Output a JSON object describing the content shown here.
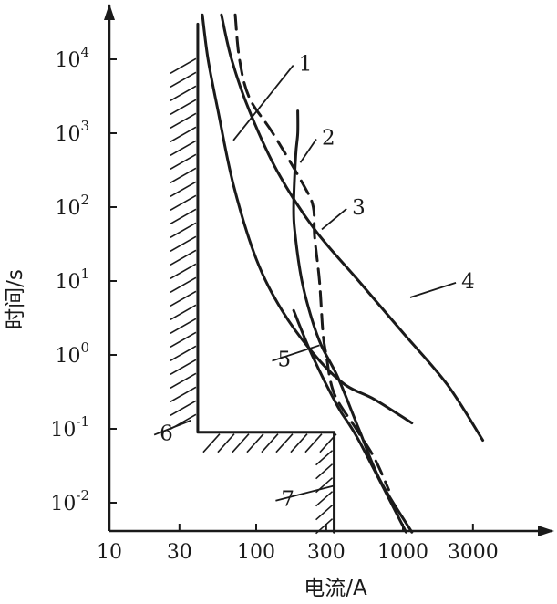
{
  "chart_data": {
    "type": "line",
    "xlabel": "电流/A",
    "ylabel": "时间/s",
    "x_scale": "log",
    "y_scale": "log",
    "xlim": [
      10,
      5000
    ],
    "ylim": [
      0.004,
      40000
    ],
    "x_ticks": [
      {
        "value": 10,
        "label": "10"
      },
      {
        "value": 30,
        "label": "30"
      },
      {
        "value": 100,
        "label": "100"
      },
      {
        "value": 300,
        "label": "300"
      },
      {
        "value": 1000,
        "label": "1000"
      },
      {
        "value": 3000,
        "label": "3000"
      }
    ],
    "y_ticks": [
      {
        "value": 0.01,
        "base": "10",
        "exp": "-2"
      },
      {
        "value": 0.1,
        "base": "10",
        "exp": "-1"
      },
      {
        "value": 1,
        "base": "10",
        "exp": "0"
      },
      {
        "value": 10,
        "base": "10",
        "exp": "1"
      },
      {
        "value": 100,
        "base": "10",
        "exp": "2"
      },
      {
        "value": 1000,
        "base": "10",
        "exp": "3"
      },
      {
        "value": 10000,
        "base": "10",
        "exp": "4"
      }
    ],
    "series": [
      {
        "label": "1",
        "style": "solid",
        "points": [
          [
            43,
            40000
          ],
          [
            47,
            10000
          ],
          [
            55,
            2000
          ],
          [
            70,
            200
          ],
          [
            100,
            20
          ],
          [
            150,
            4
          ],
          [
            250,
            1
          ],
          [
            400,
            0.4
          ],
          [
            640,
            0.25
          ],
          [
            1150,
            0.12
          ]
        ]
      },
      {
        "label": "2",
        "style": "solid",
        "points": [
          [
            192,
            2000
          ],
          [
            192,
            1000
          ],
          [
            186,
            500
          ],
          [
            180,
            100
          ],
          [
            185,
            40
          ],
          [
            205,
            10
          ],
          [
            240,
            3
          ],
          [
            280,
            1.3
          ],
          [
            360,
            0.5
          ],
          [
            500,
            0.1
          ],
          [
            700,
            0.02
          ],
          [
            1150,
            0.004
          ]
        ]
      },
      {
        "label": "3",
        "style": "dashed",
        "points": [
          [
            72,
            40000
          ],
          [
            77,
            10000
          ],
          [
            90,
            3000
          ],
          [
            130,
            1000
          ],
          [
            210,
            200
          ],
          [
            245,
            100
          ],
          [
            250,
            40
          ],
          [
            270,
            10
          ],
          [
            285,
            2
          ],
          [
            300,
            1
          ],
          [
            340,
            0.3
          ],
          [
            480,
            0.1
          ],
          [
            640,
            0.04
          ],
          [
            800,
            0.015
          ]
        ]
      },
      {
        "label": "4",
        "style": "solid",
        "points": [
          [
            58,
            40000
          ],
          [
            68,
            10000
          ],
          [
            90,
            2000
          ],
          [
            140,
            300
          ],
          [
            250,
            50
          ],
          [
            500,
            10
          ],
          [
            1000,
            2
          ],
          [
            2000,
            0.4
          ],
          [
            3500,
            0.07
          ]
        ]
      },
      {
        "label": "5",
        "style": "solid",
        "points": [
          [
            180,
            4
          ],
          [
            240,
            1
          ],
          [
            360,
            0.2
          ],
          [
            500,
            0.07
          ],
          [
            1050,
            0.004
          ]
        ]
      },
      {
        "label": "6",
        "style": "boundary",
        "points": [
          [
            40,
            30000
          ],
          [
            40,
            0.09
          ],
          [
            340,
            0.09
          ],
          [
            340,
            0.004
          ]
        ]
      }
    ],
    "labels": [
      {
        "text": "1",
        "x": 195,
        "y": 7000,
        "lx": 70,
        "ly": 800
      },
      {
        "text": "2",
        "x": 280,
        "y": 700,
        "lx": 200,
        "ly": 400
      },
      {
        "text": "3",
        "x": 450,
        "y": 80,
        "lx": 280,
        "ly": 50
      },
      {
        "text": "4",
        "x": 2500,
        "y": 8,
        "lx": 1120,
        "ly": 6
      },
      {
        "text": "5",
        "x": 140,
        "y": 0.7,
        "lx": 270,
        "ly": 1.35
      },
      {
        "text": "6",
        "x": 22,
        "y": 0.07,
        "lx": 36,
        "ly": 0.13
      },
      {
        "text": "7",
        "x": 148,
        "y": 0.009,
        "lx": 340,
        "ly": 0.017
      }
    ]
  }
}
